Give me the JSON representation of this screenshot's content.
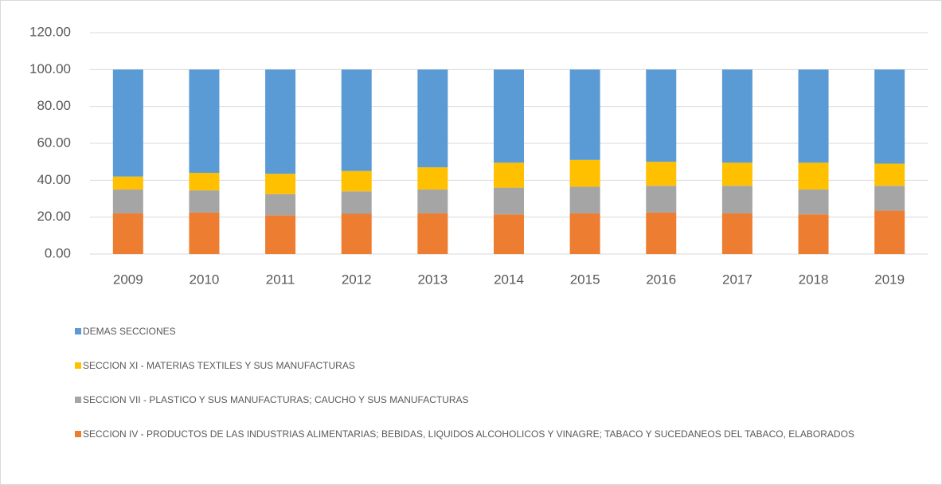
{
  "chart_data": {
    "type": "bar",
    "stacked": true,
    "categories": [
      "2009",
      "2010",
      "2011",
      "2012",
      "2013",
      "2014",
      "2015",
      "2016",
      "2017",
      "2018",
      "2019"
    ],
    "series": [
      {
        "name": "SECCION IV - PRODUCTOS DE LAS INDUSTRIAS ALIMENTARIAS; BEBIDAS, LIQUIDOS ALCOHOLICOS Y VINAGRE; TABACO Y SUCEDANEOS DEL TABACO, ELABORADOS",
        "color": "#ed7d31",
        "values": [
          22,
          22.5,
          21,
          21.8,
          22,
          21.5,
          22,
          22.5,
          22,
          21.5,
          23.5
        ]
      },
      {
        "name": "SECCION VII - PLASTICO Y SUS MANUFACTURAS; CAUCHO Y SUS MANUFACTURAS",
        "color": "#a5a5a5",
        "values": [
          13,
          12,
          11.5,
          12.2,
          13,
          14.5,
          14.5,
          14.5,
          15,
          13.5,
          13.5
        ]
      },
      {
        "name": "SECCION XI - MATERIAS TEXTILES Y SUS MANUFACTURAS",
        "color": "#ffc000",
        "values": [
          7,
          9.5,
          11,
          11,
          12,
          13.5,
          14.5,
          13,
          12.5,
          14.5,
          12
        ]
      },
      {
        "name": "DEMAS SECCIONES",
        "color": "#5b9bd5",
        "values": [
          58,
          56,
          56.5,
          55,
          53,
          50.5,
          49,
          50,
          50.5,
          50.5,
          51
        ]
      }
    ],
    "ylim": [
      0,
      120
    ],
    "yticks": [
      {
        "value": 0,
        "label": "0.00"
      },
      {
        "value": 20,
        "label": "20.00"
      },
      {
        "value": 40,
        "label": "40.00"
      },
      {
        "value": 60,
        "label": "60.00"
      },
      {
        "value": 80,
        "label": "80.00"
      },
      {
        "value": 100,
        "label": "100.00"
      },
      {
        "value": 120,
        "label": "120.00"
      }
    ],
    "grid": true,
    "legend": "bottom"
  }
}
